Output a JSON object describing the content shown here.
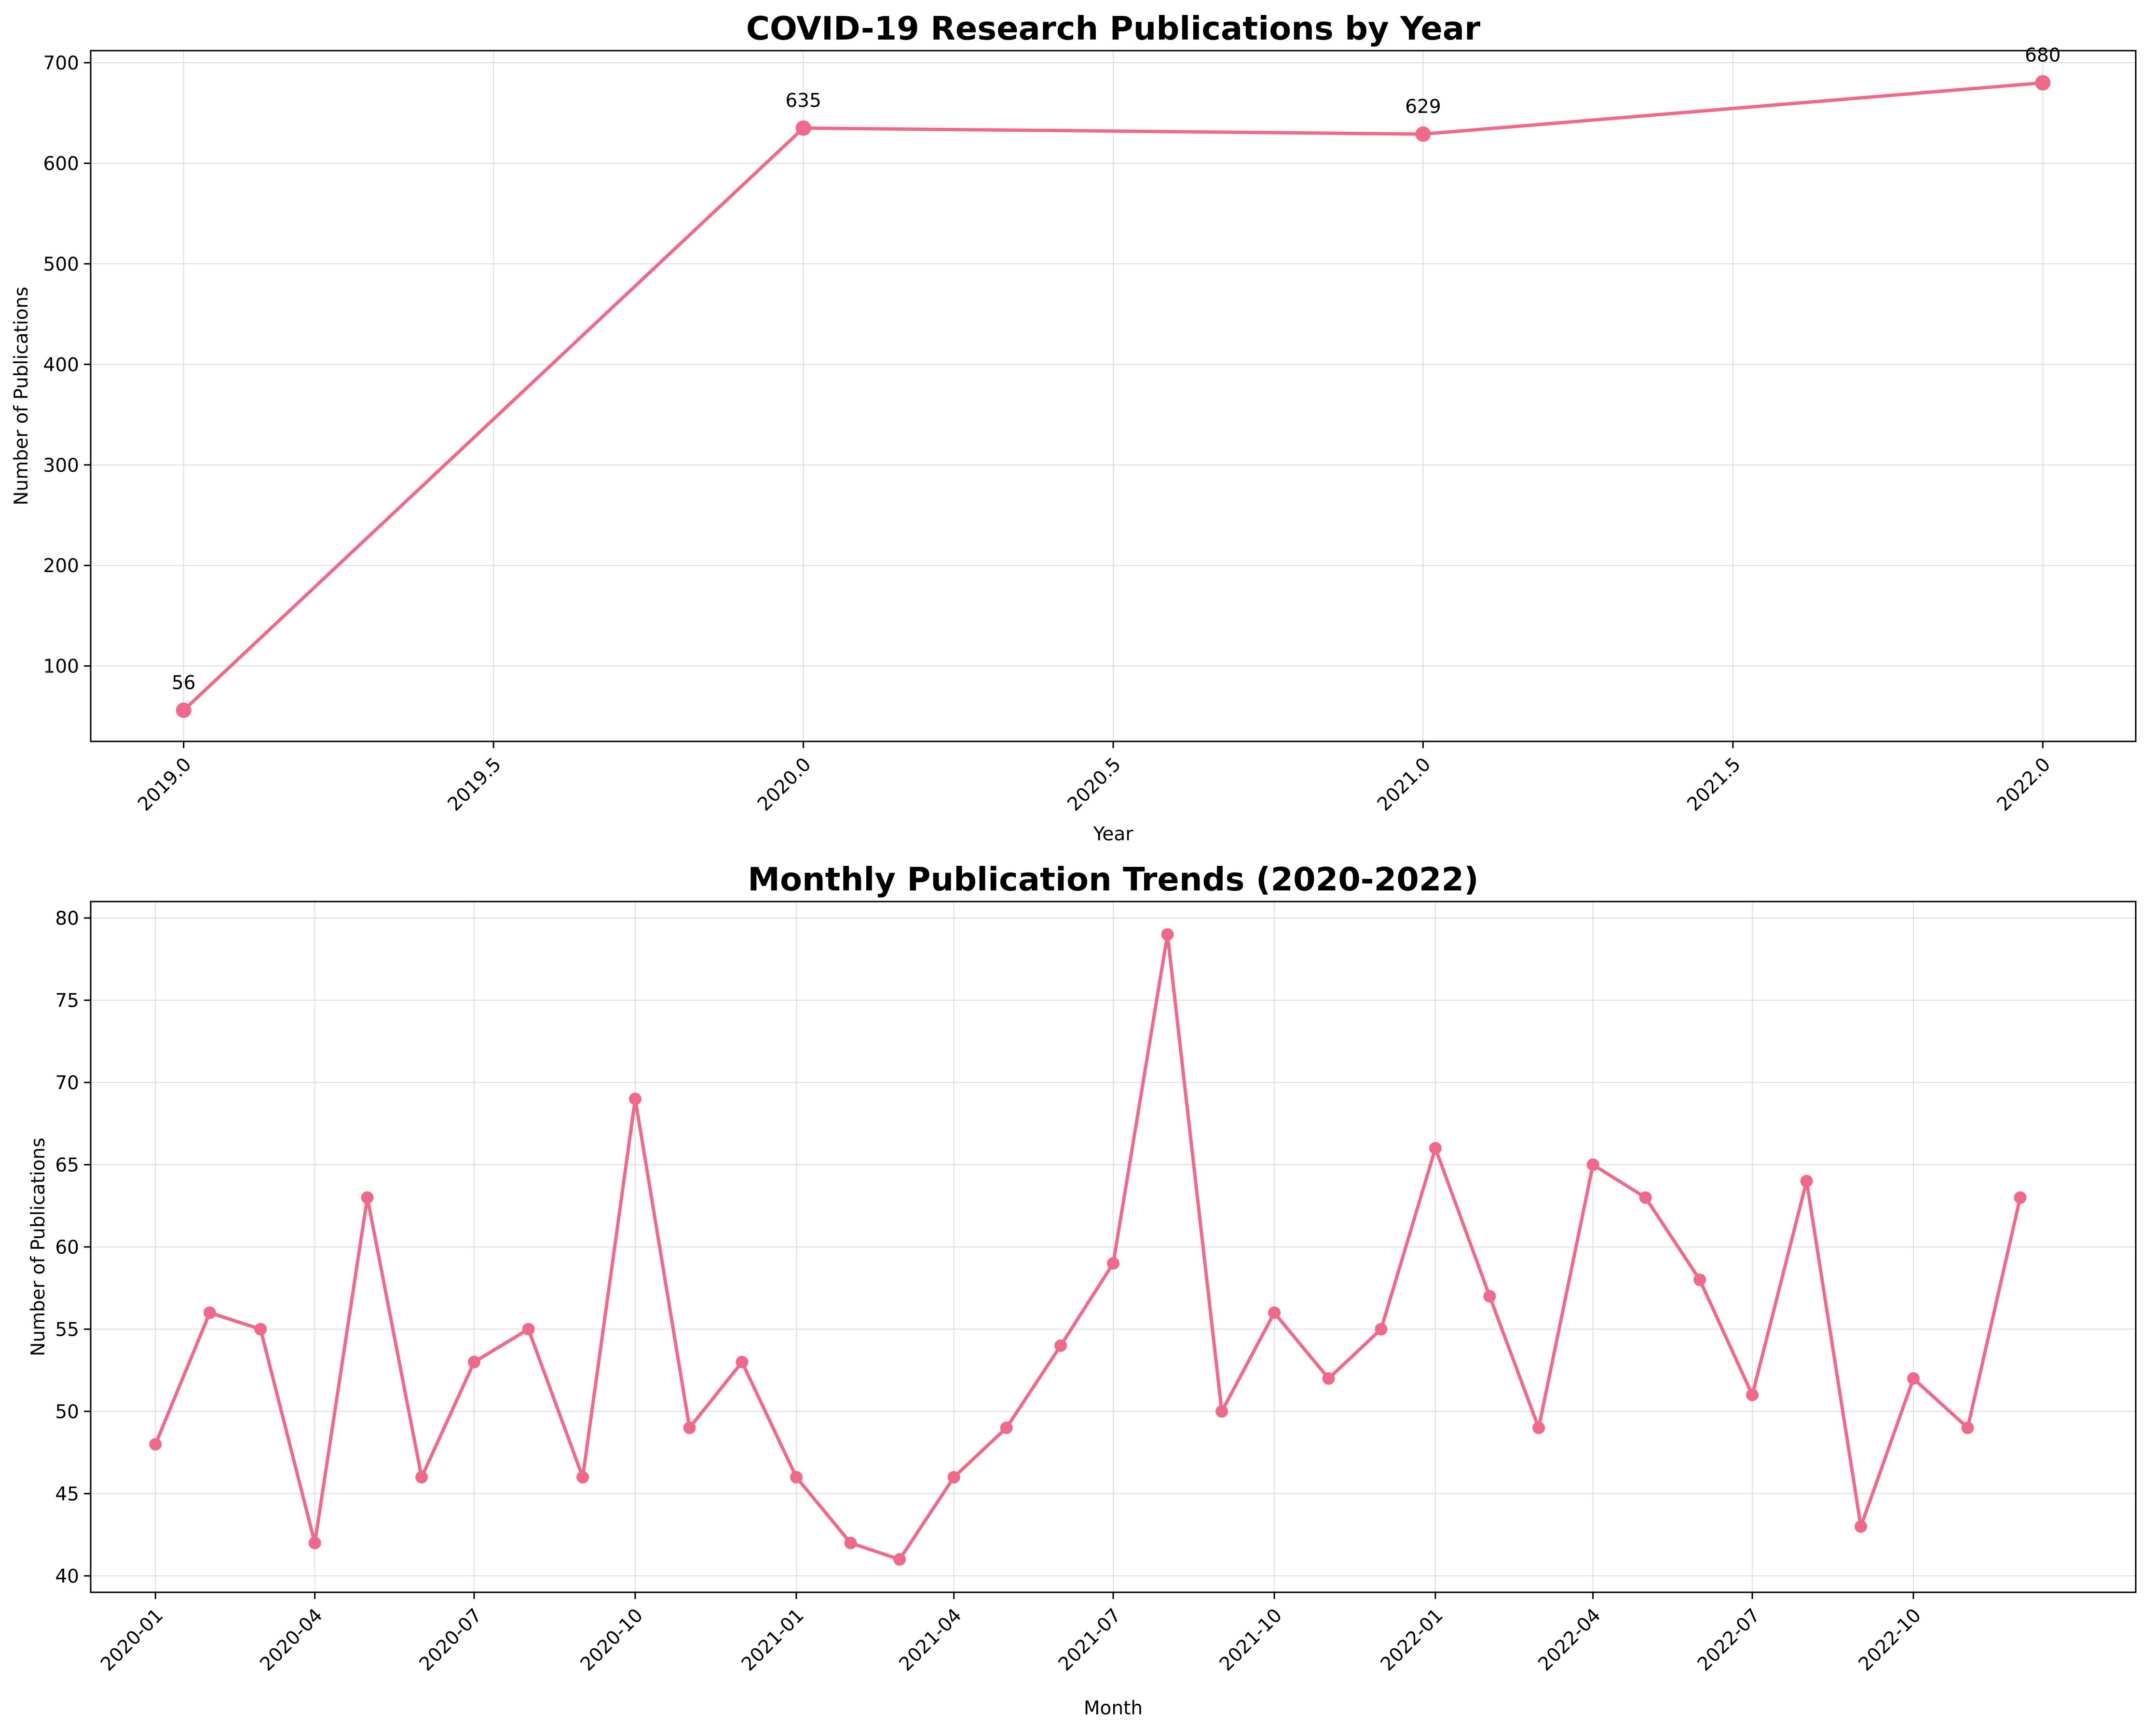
{
  "chart_data": [
    {
      "type": "line",
      "title": "COVID-19 Research Publications by Year",
      "xlabel": "Year",
      "ylabel": "Number of Publications",
      "x": [
        2019,
        2020,
        2021,
        2022
      ],
      "series": [
        {
          "values": [
            56,
            635,
            629,
            680
          ]
        }
      ],
      "data_labels": [
        "56",
        "635",
        "629",
        "680"
      ],
      "xlim": [
        2018.85,
        2022.15
      ],
      "ylim": [
        25,
        712
      ],
      "xticks": [
        2019.0,
        2019.5,
        2020.0,
        2020.5,
        2021.0,
        2021.5,
        2022.0
      ],
      "xtick_labels": [
        "2019.0",
        "2019.5",
        "2020.0",
        "2020.5",
        "2021.0",
        "2021.5",
        "2022.0"
      ],
      "yticks": [
        100,
        200,
        300,
        400,
        500,
        600,
        700
      ],
      "ytick_labels": [
        "100",
        "200",
        "300",
        "400",
        "500",
        "600",
        "700"
      ],
      "grid": true,
      "color": "#f0698a"
    },
    {
      "type": "line",
      "title": "Monthly Publication Trends (2020-2022)",
      "xlabel": "Month",
      "ylabel": "Number of Publications",
      "x": [
        "2020-01",
        "2020-02",
        "2020-03",
        "2020-04",
        "2020-05",
        "2020-06",
        "2020-07",
        "2020-08",
        "2020-09",
        "2020-10",
        "2020-11",
        "2020-12",
        "2021-01",
        "2021-02",
        "2021-03",
        "2021-04",
        "2021-05",
        "2021-06",
        "2021-07",
        "2021-08",
        "2021-09",
        "2021-10",
        "2021-11",
        "2021-12",
        "2022-01",
        "2022-02",
        "2022-03",
        "2022-04",
        "2022-05",
        "2022-06",
        "2022-07",
        "2022-08",
        "2022-09",
        "2022-10",
        "2022-11",
        "2022-12"
      ],
      "series": [
        {
          "values": [
            48,
            56,
            55,
            42,
            63,
            46,
            53,
            55,
            46,
            69,
            49,
            53,
            46,
            42,
            41,
            46,
            49,
            54,
            59,
            79,
            50,
            56,
            52,
            55,
            66,
            57,
            49,
            65,
            63,
            58,
            51,
            64,
            43,
            52,
            49,
            63
          ]
        }
      ],
      "xlim": [
        "2019-11-25",
        "2023-02-05"
      ],
      "ylim": [
        39,
        81
      ],
      "xtick_labels": [
        "2020-01",
        "2020-04",
        "2020-07",
        "2020-10",
        "2021-01",
        "2021-04",
        "2021-07",
        "2021-10",
        "2022-01",
        "2022-04",
        "2022-07",
        "2022-10"
      ],
      "yticks": [
        40,
        45,
        50,
        55,
        60,
        65,
        70,
        75,
        80
      ],
      "ytick_labels": [
        "40",
        "45",
        "50",
        "55",
        "60",
        "65",
        "70",
        "75",
        "80"
      ],
      "grid": true,
      "color": "#f0698a"
    }
  ]
}
